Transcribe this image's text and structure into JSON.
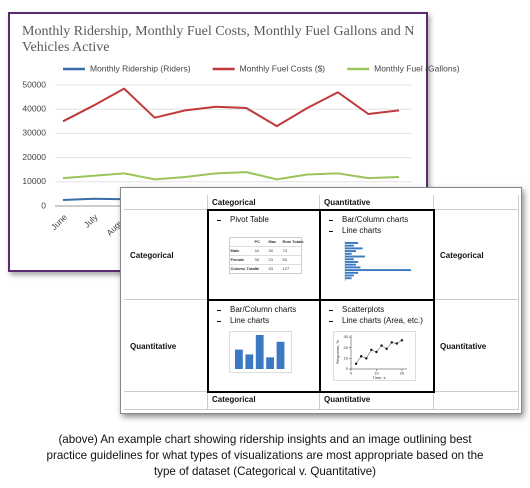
{
  "chart_data": {
    "type": "line",
    "title": "Monthly Ridership, Monthly Fuel Costs, Monthly Fuel Gallons and N Vehicles Active",
    "categories": [
      "June",
      "July",
      "August",
      null,
      null,
      null,
      null,
      null,
      null,
      null,
      null,
      null
    ],
    "series": [
      {
        "name": "Monthly Ridership (Riders)",
        "color": "#3a6ea8",
        "values": [
          2500,
          3000,
          2800,
          2600,
          2700,
          2900,
          3000,
          2400,
          2800,
          3000,
          2600,
          2700
        ]
      },
      {
        "name": "Monthly Fuel Costs ($)",
        "color": "#c0393b",
        "values": [
          35000,
          41500,
          48500,
          36500,
          39500,
          41000,
          40500,
          33000,
          40500,
          47000,
          38000,
          39500
        ]
      },
      {
        "name": "Monthly Fuel (Gallons)",
        "color": "#9bc55a",
        "values": [
          11500,
          12500,
          13500,
          11000,
          12000,
          13500,
          14000,
          11000,
          13000,
          13500,
          11500,
          12000
        ]
      }
    ],
    "ylim": [
      0,
      50000
    ],
    "yticks": [
      0,
      10000,
      20000,
      30000,
      40000,
      50000
    ],
    "grid": true,
    "legend": "top"
  },
  "table": {
    "header": [
      "Categorical",
      "Quantitative"
    ],
    "footer": [
      "Categorical",
      "Quantitative"
    ],
    "rows": [
      {
        "label": "Categorical",
        "label_right": "Categorical",
        "cells": [
          {
            "bullets": [
              "Pivot Table"
            ],
            "figure": {
              "type": "pivot",
              "columns": [
                "PC",
                "Mac",
                "Row Totals"
              ],
              "rows": [
                [
                  "Male",
                  "44",
                  "30",
                  "74"
                ],
                [
                  "Female",
                  "30",
                  "23",
                  "53"
                ],
                [
                  "Column Totals",
                  "74",
                  "53",
                  "127"
                ]
              ]
            }
          },
          {
            "bullets": [
              "Bar/Column charts",
              "Line charts"
            ],
            "figure": {
              "type": "hbar",
              "color": "#3a78c2",
              "values": [
                6,
                4,
                8,
                5,
                3,
                9,
                4,
                6,
                5,
                7,
                30,
                6,
                4,
                3
              ]
            }
          }
        ]
      },
      {
        "label": "Quantitative",
        "label_right": "Quantitative",
        "cells": [
          {
            "bullets": [
              "Bar/Column charts",
              "Line charts"
            ],
            "figure": {
              "type": "bar",
              "color": "#3a78c2",
              "values": [
                20,
                15,
                35,
                12,
                28
              ]
            }
          },
          {
            "bullets": [
              "Scatterplots",
              "Line charts (Area, etc.)"
            ],
            "figure": {
              "type": "scatter",
              "x": [
                2,
                4,
                6,
                8,
                10,
                12,
                14,
                16,
                18,
                20
              ],
              "values": [
                5,
                12,
                10,
                18,
                16,
                22,
                19,
                25,
                24,
                27
              ],
              "xlim": [
                0,
                22
              ],
              "ylim": [
                0,
                32
              ],
              "xticks": [
                0,
                10,
                20
              ],
              "yticks": [
                0,
                10,
                20,
                30
              ],
              "xlabel": "Time, s",
              "ylabel": "Response, %"
            }
          }
        ]
      }
    ]
  },
  "caption": "(above) An example chart showing ridership insights and an image outlining best practice guidelines for what types of visualizations are most appropriate based on the type of dataset (Categorical v. Quantitative)"
}
